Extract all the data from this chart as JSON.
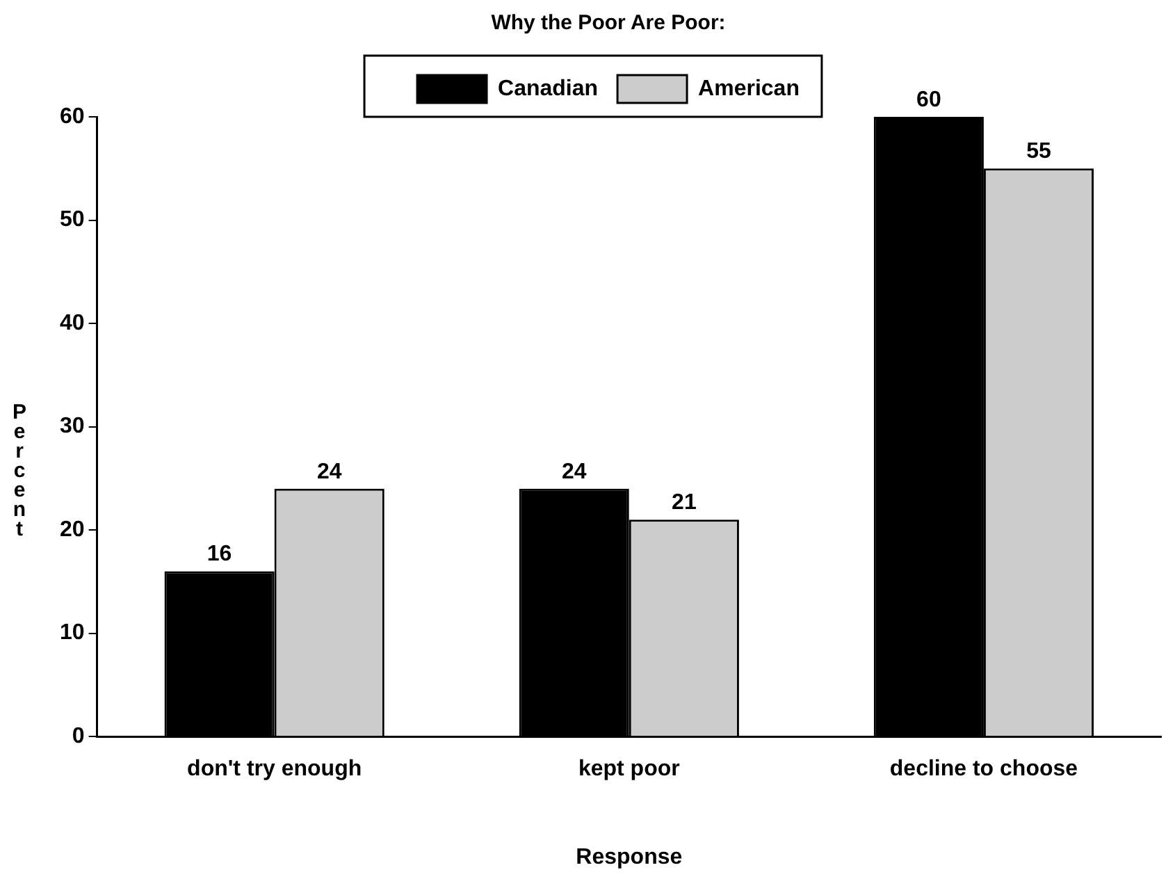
{
  "chart_data": {
    "type": "bar",
    "title": "Why the Poor Are Poor:",
    "xlabel": "Response",
    "ylabel": "Percent",
    "categories": [
      "don't try enough",
      "kept poor",
      "decline to choose"
    ],
    "series": [
      {
        "name": "Canadian",
        "color": "#000000",
        "values": [
          16,
          24,
          60
        ]
      },
      {
        "name": "American",
        "color": "#cccccc",
        "values": [
          24,
          21,
          55
        ]
      }
    ],
    "ylim": [
      0,
      60
    ],
    "yticks": [
      0,
      10,
      20,
      30,
      40,
      50,
      60
    ],
    "grid": false,
    "legend": "top",
    "data_labels": true
  }
}
